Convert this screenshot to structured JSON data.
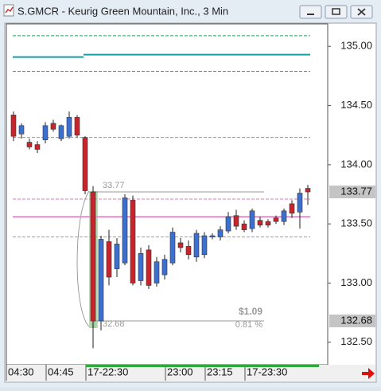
{
  "window_title": "S.GMCR - Keurig Green Mountain, Inc., 3 Min",
  "chart_data": {
    "type": "candlestick",
    "categories": [
      "04:30",
      null,
      null,
      null,
      null,
      "04:45",
      null,
      null,
      null,
      null,
      "17-22:30",
      null,
      null,
      null,
      null,
      null,
      null,
      null,
      null,
      null,
      "23:00",
      null,
      null,
      null,
      null,
      "23:15",
      null,
      null,
      null,
      null,
      "17-23:30",
      null,
      null,
      null,
      null,
      null,
      null,
      null
    ],
    "open": [
      134.42,
      134.26,
      134.19,
      134.17,
      134.21,
      134.35,
      134.22,
      134.24,
      134.4,
      134.23,
      133.77,
      132.68,
      133.35,
      133.12,
      133.17,
      133.7,
      133.02,
      133.28,
      133.0,
      133.07,
      133.17,
      133.34,
      133.31,
      133.22,
      133.24,
      133.39,
      133.39,
      133.44,
      133.57,
      133.5,
      133.46,
      133.53,
      133.52,
      133.55,
      133.52,
      133.67,
      133.6,
      133.8
    ],
    "high": [
      134.45,
      134.35,
      134.22,
      134.2,
      134.36,
      134.38,
      134.34,
      134.45,
      134.42,
      134.24,
      133.82,
      133.4,
      133.45,
      133.38,
      133.75,
      133.74,
      133.3,
      133.32,
      133.22,
      133.24,
      133.47,
      133.38,
      133.36,
      133.45,
      133.43,
      133.42,
      133.48,
      133.6,
      133.62,
      133.53,
      133.63,
      133.56,
      133.54,
      133.57,
      133.63,
      133.7,
      133.8,
      133.83
    ],
    "low": [
      134.2,
      134.22,
      134.13,
      134.1,
      134.18,
      134.28,
      134.2,
      134.22,
      134.23,
      133.75,
      132.45,
      132.6,
      132.98,
      133.05,
      133.15,
      132.98,
      132.98,
      132.95,
      132.97,
      133.03,
      133.15,
      133.26,
      133.2,
      133.18,
      133.21,
      133.37,
      133.36,
      133.42,
      133.45,
      133.43,
      133.43,
      133.47,
      133.47,
      133.5,
      133.49,
      133.55,
      133.46,
      133.66
    ],
    "close": [
      134.24,
      134.33,
      134.15,
      134.13,
      134.33,
      134.3,
      134.33,
      134.4,
      134.25,
      133.78,
      132.68,
      133.37,
      133.05,
      133.33,
      133.72,
      133.0,
      133.25,
      132.98,
      133.18,
      133.2,
      133.43,
      133.3,
      133.24,
      133.42,
      133.4,
      133.4,
      133.45,
      133.56,
      133.48,
      133.45,
      133.61,
      133.49,
      133.49,
      133.52,
      133.61,
      133.59,
      133.76,
      133.77
    ],
    "up_color": "#3b6fd0",
    "down_color": "#c8242c",
    "ylim": [
      132.31,
      135.19
    ],
    "yticks": [
      {
        "value": 135,
        "label": "135.00"
      },
      {
        "value": 134.5,
        "label": "134.50"
      },
      {
        "value": 134,
        "label": "134.00"
      },
      {
        "value": 133.5,
        "label": "133.50"
      },
      {
        "value": 133,
        "label": "133.00"
      },
      {
        "value": 132.5,
        "label": "132.50"
      }
    ],
    "levels": [
      {
        "value": 135.09,
        "color": "#1fa85c",
        "dash": true
      },
      {
        "value": 134.79,
        "color": "#1fa85c",
        "dash": true
      },
      {
        "value": 134.91,
        "color": "#14a0a0",
        "dash": false,
        "end": 9
      },
      {
        "value": 134.93,
        "color": "#14a0a0",
        "dash": false,
        "start": 9
      },
      {
        "value": 134.23,
        "color": "#999999",
        "dash": true
      },
      {
        "value": 133.71,
        "color": "#e07ab8",
        "dash": true
      },
      {
        "value": 133.56,
        "color": "#e88ccc",
        "dash": false
      },
      {
        "value": 133.39,
        "color": "#e07ab8",
        "dash": true
      }
    ],
    "last_price": {
      "value": 133.77,
      "label": "133.77"
    },
    "low_marker": {
      "value": 132.68,
      "label": "132.68"
    },
    "measure": {
      "high": 133.77,
      "high_label": "33.77",
      "low": 132.68,
      "low_label": "32.68",
      "change": "$1.09",
      "percent": "0.81 %",
      "start": 10,
      "end": 31
    }
  }
}
